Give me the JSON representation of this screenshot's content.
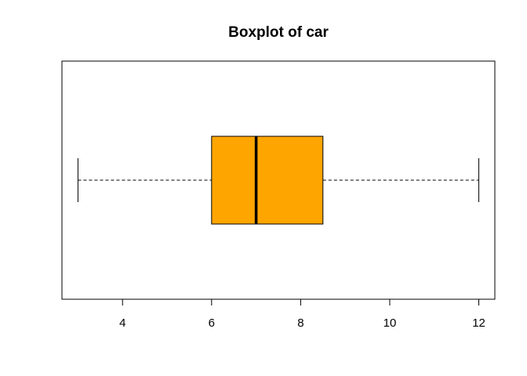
{
  "chart_data": {
    "type": "boxplot",
    "title": "Boxplot of car",
    "xlabel": "",
    "ylabel": "",
    "orientation": "horizontal",
    "series": [
      {
        "min": 3,
        "q1": 6,
        "median": 7,
        "q3": 8.5,
        "max": 12
      }
    ],
    "x_ticks": [
      4,
      6,
      8,
      10,
      12
    ],
    "x_tick_labels": [
      "4",
      "6",
      "8",
      "10",
      "12"
    ],
    "xlim": [
      2.64,
      12.36
    ],
    "grid": false,
    "box_fill_color": "#FFA500",
    "line_color": "#000000"
  }
}
